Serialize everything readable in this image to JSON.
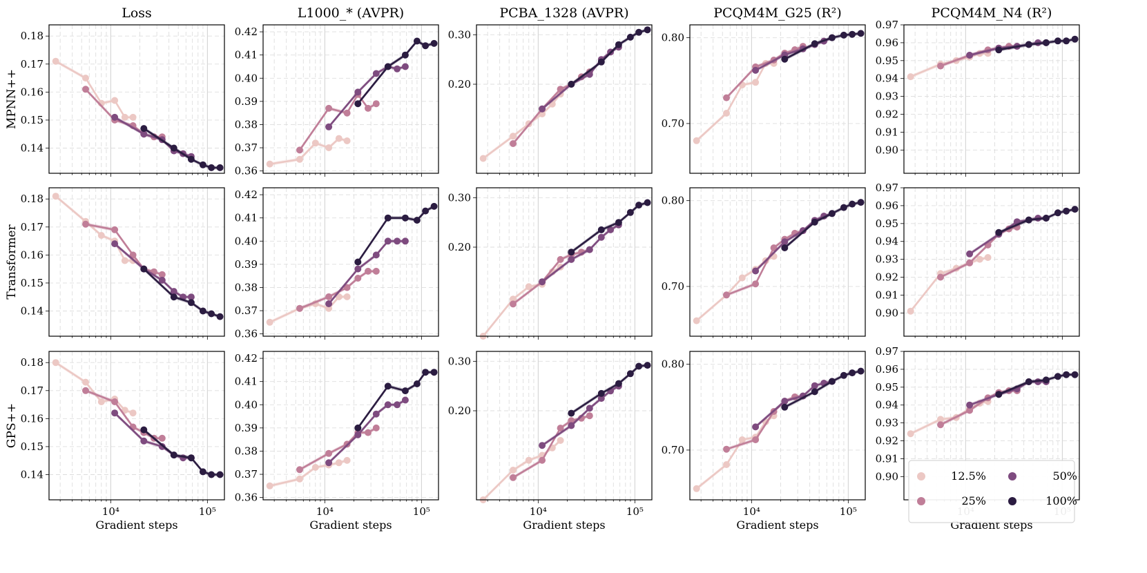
{
  "figure": {
    "column_titles": [
      "Loss",
      "L1000_* (AVPR)",
      "PCBA_1328 (AVPR)",
      "PCQM4M_G25 (R²)",
      "PCQM4M_N4 (R²)"
    ],
    "row_titles": [
      "MPNN++",
      "Transformer",
      "GPS++"
    ],
    "xlabel": "Gradient steps",
    "x_tick_labels": [
      "10⁴",
      "10⁵"
    ],
    "legend": [
      {
        "label": "12.5%",
        "color": "#ecc8c4"
      },
      {
        "label": "25%",
        "color": "#c07e98"
      },
      {
        "label": "50%",
        "color": "#7e4b7f"
      },
      {
        "label": "100%",
        "color": "#2b1c41"
      }
    ]
  },
  "chart_data": {
    "type": "line",
    "x_scale": "log",
    "xlim": [
      2300,
      150000
    ],
    "x_ticks": [
      10000,
      100000
    ],
    "series_names": [
      "12.5%",
      "25%",
      "50%",
      "100%"
    ],
    "series_colors": [
      "#ecc8c4",
      "#c07e98",
      "#7e4b7f",
      "#2b1c41"
    ],
    "x": [
      [
        2700,
        5500,
        8000,
        11000,
        14000,
        17000
      ],
      [
        5500,
        11000,
        17000,
        22000,
        28000,
        34000
      ],
      [
        11000,
        22000,
        34000,
        45000,
        56000,
        68000
      ],
      [
        22000,
        45000,
        68000,
        90000,
        110000,
        135000
      ]
    ],
    "panels": [
      [
        {
          "ylim": [
            0.131,
            0.184
          ],
          "yticks": [
            0.14,
            0.15,
            0.16,
            0.17,
            0.18
          ],
          "ytick_labels": [
            "0.14",
            "0.15",
            "0.16",
            "0.17",
            "0.18"
          ],
          "series": [
            [
              0.171,
              0.165,
              0.156,
              0.157,
              0.151,
              0.151
            ],
            [
              0.161,
              0.15,
              0.148,
              0.145,
              0.144,
              0.144
            ],
            [
              0.151,
              0.145,
              0.143,
              0.139,
              0.138,
              0.137
            ],
            [
              0.147,
              0.14,
              0.136,
              0.134,
              0.133,
              0.133
            ]
          ]
        },
        {
          "ylim": [
            0.359,
            0.423
          ],
          "yticks": [
            0.36,
            0.37,
            0.38,
            0.39,
            0.4,
            0.41,
            0.42
          ],
          "ytick_labels": [
            "0.36",
            "0.37",
            "0.38",
            "0.39",
            "0.40",
            "0.41",
            "0.42"
          ],
          "series": [
            [
              0.363,
              0.365,
              0.372,
              0.37,
              0.374,
              0.373
            ],
            [
              0.369,
              0.387,
              0.385,
              0.393,
              0.387,
              0.389
            ],
            [
              0.379,
              0.394,
              0.402,
              0.405,
              0.404,
              0.405
            ],
            [
              0.389,
              0.405,
              0.41,
              0.416,
              0.414,
              0.415
            ]
          ]
        },
        {
          "ylim": [
            0.02,
            0.32
          ],
          "yticks": [
            0.2,
            0.3
          ],
          "ytick_labels": [
            "0.20",
            "0.30"
          ],
          "series": [
            [
              0.05,
              0.095,
              0.12,
              0.14,
              0.16,
              0.18
            ],
            [
              0.08,
              0.15,
              0.19,
              0.2,
              0.215,
              0.225
            ],
            [
              0.15,
              0.2,
              0.22,
              0.25,
              0.265,
              0.275
            ],
            [
              0.2,
              0.245,
              0.28,
              0.295,
              0.305,
              0.31
            ]
          ]
        },
        {
          "ylim": [
            0.642,
            0.815
          ],
          "yticks": [
            0.7,
            0.8
          ],
          "ytick_labels": [
            "0.70",
            "0.80"
          ],
          "series": [
            [
              0.68,
              0.712,
              0.745,
              0.748,
              0.77,
              0.77
            ],
            [
              0.73,
              0.766,
              0.774,
              0.782,
              0.786,
              0.79
            ],
            [
              0.762,
              0.78,
              0.787,
              0.792,
              0.796,
              0.8
            ],
            [
              0.775,
              0.793,
              0.8,
              0.803,
              0.804,
              0.805
            ]
          ]
        },
        {
          "ylim": [
            0.887,
            0.97
          ],
          "yticks": [
            0.9,
            0.91,
            0.92,
            0.93,
            0.94,
            0.95,
            0.96,
            0.97
          ],
          "ytick_labels": [
            "0.90",
            "0.91",
            "0.92",
            "0.93",
            "0.94",
            "0.95",
            "0.96",
            "0.97"
          ],
          "series": [
            [
              0.941,
              0.948,
              0.95,
              0.952,
              0.954,
              0.954
            ],
            [
              0.947,
              0.953,
              0.956,
              0.957,
              0.958,
              0.958
            ],
            [
              0.953,
              0.957,
              0.958,
              0.959,
              0.96,
              0.96
            ],
            [
              0.956,
              0.959,
              0.96,
              0.961,
              0.961,
              0.962
            ]
          ]
        }
      ],
      [
        {
          "ylim": [
            0.131,
            0.184
          ],
          "yticks": [
            0.14,
            0.15,
            0.16,
            0.17,
            0.18
          ],
          "ytick_labels": [
            "0.14",
            "0.15",
            "0.16",
            "0.17",
            "0.18"
          ],
          "series": [
            [
              0.181,
              0.172,
              0.167,
              0.165,
              0.158,
              0.158
            ],
            [
              0.171,
              0.169,
              0.16,
              0.155,
              0.154,
              0.153
            ],
            [
              0.164,
              0.155,
              0.151,
              0.147,
              0.145,
              0.145
            ],
            [
              0.155,
              0.145,
              0.143,
              0.14,
              0.139,
              0.138
            ]
          ]
        },
        {
          "ylim": [
            0.359,
            0.423
          ],
          "yticks": [
            0.36,
            0.37,
            0.38,
            0.39,
            0.4,
            0.41,
            0.42
          ],
          "ytick_labels": [
            "0.36",
            "0.37",
            "0.38",
            "0.39",
            "0.40",
            "0.41",
            "0.42"
          ],
          "series": [
            [
              0.365,
              0.371,
              0.373,
              0.371,
              0.376,
              0.376
            ],
            [
              0.371,
              0.376,
              0.38,
              0.384,
              0.387,
              0.387
            ],
            [
              0.373,
              0.388,
              0.394,
              0.4,
              0.4,
              0.4
            ],
            [
              0.391,
              0.41,
              0.41,
              0.409,
              0.413,
              0.415
            ]
          ]
        },
        {
          "ylim": [
            0.02,
            0.32
          ],
          "yticks": [
            0.2,
            0.3
          ],
          "ytick_labels": [
            "0.20",
            "0.30"
          ],
          "series": [
            [
              0.02,
              0.095,
              0.12,
              0.125,
              0.15,
              0.16
            ],
            [
              0.085,
              0.13,
              0.175,
              0.185,
              0.19,
              0.195
            ],
            [
              0.13,
              0.175,
              0.195,
              0.22,
              0.235,
              0.245
            ],
            [
              0.19,
              0.235,
              0.25,
              0.27,
              0.285,
              0.29
            ]
          ]
        },
        {
          "ylim": [
            0.642,
            0.815
          ],
          "yticks": [
            0.7,
            0.8
          ],
          "ytick_labels": [
            "0.70",
            "0.80"
          ],
          "series": [
            [
              0.66,
              0.69,
              0.71,
              0.72,
              0.73,
              0.735
            ],
            [
              0.69,
              0.703,
              0.745,
              0.755,
              0.762,
              0.765
            ],
            [
              0.718,
              0.752,
              0.765,
              0.777,
              0.782,
              0.785
            ],
            [
              0.745,
              0.775,
              0.785,
              0.792,
              0.796,
              0.798
            ]
          ]
        },
        {
          "ylim": [
            0.887,
            0.97
          ],
          "yticks": [
            0.9,
            0.91,
            0.92,
            0.93,
            0.94,
            0.95,
            0.96,
            0.97
          ],
          "ytick_labels": [
            "0.90",
            "0.91",
            "0.92",
            "0.93",
            "0.94",
            "0.95",
            "0.96",
            "0.97"
          ],
          "series": [
            [
              0.901,
              0.922,
              0.925,
              0.928,
              0.93,
              0.931
            ],
            [
              0.92,
              0.928,
              0.938,
              0.944,
              0.947,
              0.948
            ],
            [
              0.933,
              0.944,
              0.951,
              0.952,
              0.953,
              0.953
            ],
            [
              0.945,
              0.952,
              0.953,
              0.956,
              0.957,
              0.958
            ]
          ]
        }
      ],
      [
        {
          "ylim": [
            0.131,
            0.184
          ],
          "yticks": [
            0.14,
            0.15,
            0.16,
            0.17,
            0.18
          ],
          "ytick_labels": [
            "0.14",
            "0.15",
            "0.16",
            "0.17",
            "0.18"
          ],
          "series": [
            [
              0.18,
              0.173,
              0.166,
              0.167,
              0.163,
              0.162
            ],
            [
              0.17,
              0.166,
              0.157,
              0.155,
              0.153,
              0.153
            ],
            [
              0.162,
              0.152,
              0.15,
              0.147,
              0.146,
              0.146
            ],
            [
              0.156,
              0.147,
              0.146,
              0.141,
              0.14,
              0.14
            ]
          ]
        },
        {
          "ylim": [
            0.359,
            0.423
          ],
          "yticks": [
            0.36,
            0.37,
            0.38,
            0.39,
            0.4,
            0.41,
            0.42
          ],
          "ytick_labels": [
            "0.36",
            "0.37",
            "0.38",
            "0.39",
            "0.40",
            "0.41",
            "0.42"
          ],
          "series": [
            [
              0.365,
              0.368,
              0.373,
              0.374,
              0.375,
              0.376
            ],
            [
              0.372,
              0.379,
              0.383,
              0.388,
              0.388,
              0.39
            ],
            [
              0.375,
              0.387,
              0.396,
              0.4,
              0.4,
              0.402
            ],
            [
              0.39,
              0.408,
              0.406,
              0.409,
              0.414,
              0.414
            ]
          ]
        },
        {
          "ylim": [
            0.02,
            0.32
          ],
          "yticks": [
            0.2,
            0.3
          ],
          "ytick_labels": [
            "0.20",
            "0.30"
          ],
          "series": [
            [
              0.02,
              0.08,
              0.1,
              0.11,
              0.125,
              0.14
            ],
            [
              0.065,
              0.1,
              0.165,
              0.18,
              0.185,
              0.19
            ],
            [
              0.13,
              0.17,
              0.205,
              0.225,
              0.24,
              0.25
            ],
            [
              0.195,
              0.235,
              0.255,
              0.275,
              0.29,
              0.292
            ]
          ]
        },
        {
          "ylim": [
            0.642,
            0.815
          ],
          "yticks": [
            0.7,
            0.8
          ],
          "ytick_labels": [
            "0.70",
            "0.80"
          ],
          "series": [
            [
              0.655,
              0.683,
              0.712,
              0.715,
              0.733,
              0.74
            ],
            [
              0.701,
              0.712,
              0.745,
              0.757,
              0.762,
              0.763
            ],
            [
              0.727,
              0.757,
              0.763,
              0.775,
              0.778,
              0.78
            ],
            [
              0.75,
              0.768,
              0.78,
              0.787,
              0.79,
              0.792
            ]
          ]
        },
        {
          "ylim": [
            0.887,
            0.97
          ],
          "yticks": [
            0.9,
            0.91,
            0.92,
            0.93,
            0.94,
            0.95,
            0.96,
            0.97
          ],
          "ytick_labels": [
            "0.90",
            "0.91",
            "0.92",
            "0.93",
            "0.94",
            "0.95",
            "0.96",
            "0.97"
          ],
          "series": [
            [
              0.924,
              0.932,
              0.933,
              0.938,
              0.941,
              0.942
            ],
            [
              0.929,
              0.937,
              0.944,
              0.947,
              0.948,
              0.948
            ],
            [
              0.94,
              0.946,
              0.949,
              0.953,
              0.953,
              0.953
            ],
            [
              0.946,
              0.953,
              0.954,
              0.956,
              0.957,
              0.957
            ]
          ]
        }
      ]
    ]
  }
}
